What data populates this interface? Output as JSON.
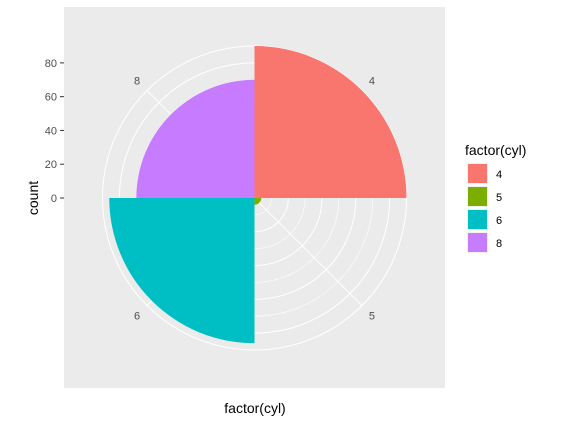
{
  "chart_data": {
    "type": "bar",
    "coord": "polar",
    "categories": [
      "4",
      "5",
      "6",
      "8"
    ],
    "values": [
      90,
      4,
      86,
      70
    ],
    "colors": [
      "#f8766d",
      "#7cae00",
      "#00bfc4",
      "#c77cff"
    ],
    "xlabel": "factor(cyl)",
    "ylabel": "count",
    "y_ticks": [
      0,
      20,
      40,
      60,
      80
    ],
    "y_tick_labels": [
      "0",
      "20",
      "40",
      "60",
      "80"
    ],
    "ylim": [
      0,
      90
    ],
    "grid": true,
    "legend": {
      "title": "factor(cyl)",
      "entries": [
        "4",
        "5",
        "6",
        "8"
      ],
      "position": "right"
    },
    "panel_background": "#ebebeb",
    "grid_color": "#ffffff"
  }
}
